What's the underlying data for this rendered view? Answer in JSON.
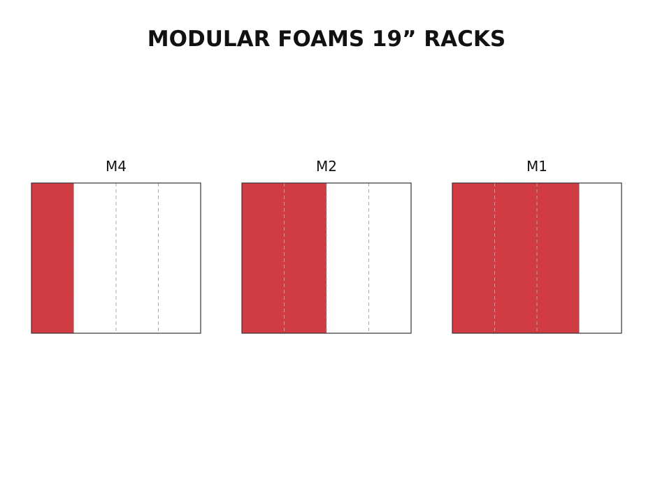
{
  "title": "MODULAR FOAMS 19” RACKS",
  "racks": [
    {
      "label": "M4"
    },
    {
      "label": "M2"
    },
    {
      "label": "M1"
    }
  ]
}
